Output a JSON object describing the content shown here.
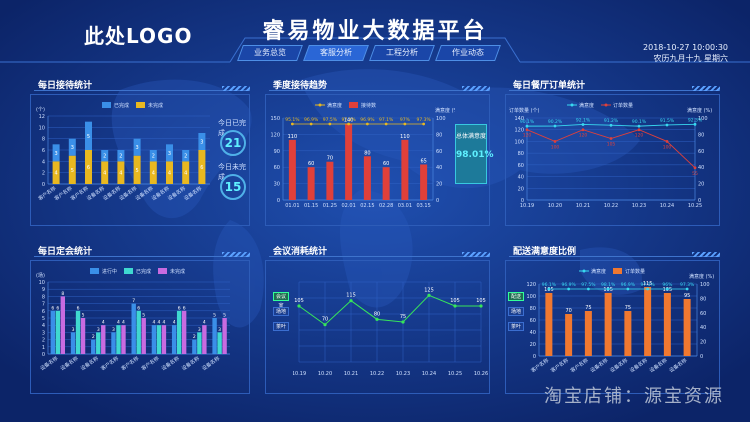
{
  "header": {
    "logo": "此处LOGO",
    "title": "睿易物业大数据平台",
    "date": "2018-10-27  10:00:30",
    "lunar": "农历九月十九  星期六",
    "tabs": [
      "业务总览",
      "客服分析",
      "工程分析",
      "作业动态"
    ]
  },
  "watermark": "淘宝店铺：源宝资源",
  "colors": {
    "blue": "#3a8fe8",
    "gold": "#e8b820",
    "red": "#e0403a",
    "teal": "#3fd8d0",
    "purple": "#c86be0",
    "orange": "#f07830",
    "cyan": "#38d8f0",
    "green": "#37e65a"
  },
  "panels": {
    "p1": {
      "title": "每日接待统计",
      "today_done_label": "今日已完成",
      "today_done": "21",
      "today_undone_label": "今日未完成",
      "today_undone": "15"
    },
    "p2": {
      "title": "季度接待趋势",
      "side_label": "总体满意度",
      "side_value": "98.01%"
    },
    "p3": {
      "title": "每日餐厅订单统计"
    },
    "p4": {
      "title": "每日定会统计"
    },
    "p5": {
      "title": "会议消耗统计",
      "btn1": "会议室",
      "btn2": "场地",
      "btn3": "茶叶"
    },
    "p6": {
      "title": "配送满意度比例",
      "btn1": "配送",
      "btn2": "场地",
      "btn3": "茶叶"
    }
  },
  "chart_data": [
    {
      "type": "bar",
      "title": "每日接待统计",
      "ylabel": "(个)",
      "ylim": [
        0,
        12
      ],
      "yticks": [
        "0",
        "2",
        "4",
        "6",
        "8",
        "10",
        "12"
      ],
      "categories": [
        "客户名称",
        "客户名称",
        "客户名称",
        "设备名称",
        "设备名称",
        "设备名称",
        "设备名称",
        "设备名称",
        "设备名称",
        "设备名称"
      ],
      "series": [
        {
          "name": "已完成",
          "values": [
            3,
            3,
            5,
            2,
            2,
            3,
            2,
            3,
            2,
            3
          ]
        },
        {
          "name": "未完成",
          "values": [
            4,
            5,
            6,
            4,
            4,
            5,
            4,
            4,
            4,
            6
          ]
        }
      ]
    },
    {
      "type": "bar+line",
      "title": "季度接待趋势",
      "ylim": [
        0,
        150
      ],
      "y2lim": [
        0,
        100
      ],
      "yticks": [
        "0",
        "30",
        "60",
        "90",
        "120",
        "150"
      ],
      "y2ticks": [
        "0",
        "20",
        "40",
        "60",
        "80",
        "100"
      ],
      "y2label": "满意度 (%)",
      "categories": [
        "01.01",
        "01.15",
        "01.25",
        "02.01",
        "02.15",
        "02.28",
        "03.01",
        "03.15"
      ],
      "series": [
        {
          "name": "满意度",
          "type": "line",
          "values": [
            95.1,
            96.9,
            97.5,
            97.1,
            96.9,
            97.1,
            97.0,
            97.3
          ]
        },
        {
          "name": "接待数",
          "type": "bar",
          "values": [
            110,
            60,
            70,
            140,
            80,
            60,
            110,
            65
          ]
        }
      ]
    },
    {
      "type": "line",
      "title": "每日餐厅订单统计",
      "ylabel": "订单数量 (个)",
      "y2label": "满意度 (%)",
      "ylim": [
        0,
        140
      ],
      "y2lim": [
        0,
        100
      ],
      "yticks": [
        "0",
        "20",
        "40",
        "60",
        "80",
        "100",
        "120",
        "140"
      ],
      "y2ticks": [
        "0",
        "20",
        "40",
        "60",
        "80",
        "100"
      ],
      "categories": [
        "10.19",
        "10.20",
        "10.21",
        "10.22",
        "10.23",
        "10.24",
        "10.25"
      ],
      "series": [
        {
          "name": "满意度",
          "values": [
            90.1,
            90.2,
            92.1,
            91.2,
            90.1,
            91.5,
            92.3
          ]
        },
        {
          "name": "订单数量",
          "values": [
            120,
            100,
            120,
            105,
            120,
            100,
            55
          ]
        }
      ]
    },
    {
      "type": "bar",
      "title": "每日定会统计",
      "ylabel": "(场)",
      "ylim": [
        0,
        10
      ],
      "yticks": [
        "0",
        "1",
        "2",
        "3",
        "4",
        "5",
        "6",
        "7",
        "8",
        "9",
        "10"
      ],
      "categories": [
        "设备名称",
        "设备名称",
        "设备名称",
        "客户名称",
        "客户名称",
        "客户名称",
        "设备名称",
        "设备名称",
        "设备名称"
      ],
      "series": [
        {
          "name": "进行中",
          "values": [
            6,
            3,
            2,
            3,
            7,
            4,
            4,
            2,
            5
          ]
        },
        {
          "name": "已完成",
          "values": [
            6,
            6,
            3,
            4,
            6,
            4,
            6,
            3,
            3
          ]
        },
        {
          "name": "未完成",
          "values": [
            8,
            5,
            4,
            4,
            5,
            4,
            6,
            4,
            5
          ]
        }
      ]
    },
    {
      "type": "line",
      "title": "会议消耗统计",
      "ylim": [
        0,
        150
      ],
      "categories": [
        "10.19",
        "10.20",
        "10.21",
        "10.22",
        "10.23",
        "10.24",
        "10.25",
        "10.26"
      ],
      "series": [
        {
          "name": "会议室",
          "values": [
            105,
            70,
            115,
            80,
            75,
            125,
            105,
            105
          ]
        }
      ]
    },
    {
      "type": "bar+line",
      "title": "配送满意度比例",
      "ylim": [
        0,
        120
      ],
      "y2lim": [
        0,
        100
      ],
      "y2label": "满意度 (%)",
      "yticks": [
        "0",
        "20",
        "40",
        "60",
        "80",
        "100",
        "120"
      ],
      "y2ticks": [
        "0",
        "20",
        "40",
        "60",
        "80",
        "100"
      ],
      "categories": [
        "客户名称",
        "客户名称",
        "客户名称",
        "设备名称",
        "设备名称",
        "设备名称",
        "设备名称",
        "设备名称"
      ],
      "series": [
        {
          "name": "满意度",
          "type": "line",
          "values": [
            96.1,
            96.9,
            97.5,
            98.1,
            96.9,
            97.1,
            96.0,
            97.3
          ]
        },
        {
          "name": "订单数量",
          "type": "bar",
          "values": [
            105,
            70,
            75,
            105,
            75,
            115,
            105,
            95
          ]
        }
      ]
    }
  ]
}
